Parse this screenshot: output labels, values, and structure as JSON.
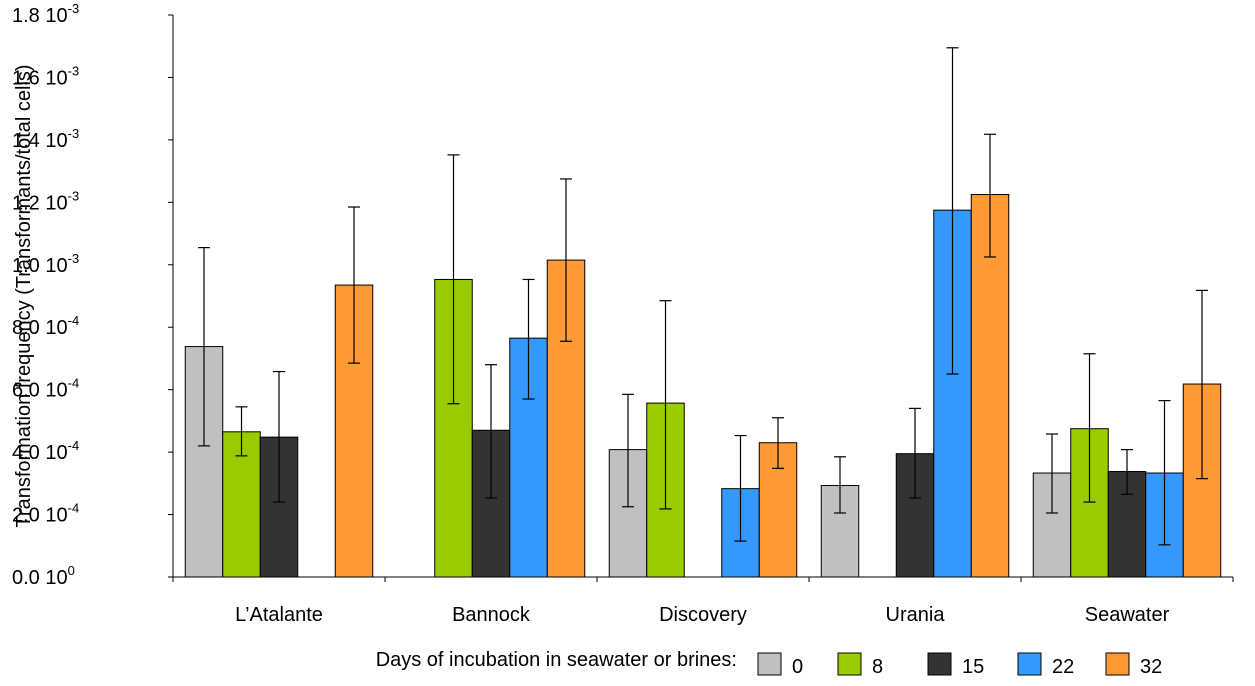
{
  "chart_data": {
    "type": "bar",
    "ylabel": "Transformation frequency (Transformants/total cells)",
    "ylim": [
      0,
      0.0018
    ],
    "yticks": [
      {
        "value": 0,
        "mantissa": "0.0",
        "exponent": "0"
      },
      {
        "value": 0.0002,
        "mantissa": "2.0",
        "exponent": "-4"
      },
      {
        "value": 0.0004,
        "mantissa": "4.0",
        "exponent": "-4"
      },
      {
        "value": 0.0006,
        "mantissa": "6.0",
        "exponent": "-4"
      },
      {
        "value": 0.0008,
        "mantissa": "8.0",
        "exponent": "-4"
      },
      {
        "value": 0.001,
        "mantissa": "1.0",
        "exponent": "-3"
      },
      {
        "value": 0.0012,
        "mantissa": "1.2",
        "exponent": "-3"
      },
      {
        "value": 0.0014,
        "mantissa": "1.4",
        "exponent": "-3"
      },
      {
        "value": 0.0016,
        "mantissa": "1.6",
        "exponent": "-3"
      },
      {
        "value": 0.0018,
        "mantissa": "1.8",
        "exponent": "-3"
      }
    ],
    "categories": [
      "L’Atalante",
      "Bannock",
      "Discovery",
      "Urania",
      "Seawater"
    ],
    "legend_title": "Days of incubation in seawater or brines:",
    "legend_position": "bottom",
    "grid": false,
    "series": [
      {
        "name": "0",
        "color": "#c0c0c0",
        "values": [
          0.000738,
          null,
          0.000408,
          0.000293,
          0.000333
        ],
        "err_low": [
          0.00042,
          null,
          0.000225,
          0.000205,
          0.000205
        ],
        "err_high": [
          0.001055,
          null,
          0.000585,
          0.000385,
          0.000458
        ]
      },
      {
        "name": "8",
        "color": "#99cc00",
        "values": [
          0.000465,
          0.000953,
          0.000557,
          null,
          0.000475
        ],
        "err_low": [
          0.000388,
          0.000555,
          0.000218,
          null,
          0.00024
        ],
        "err_high": [
          0.000545,
          0.001352,
          0.000885,
          null,
          0.000715
        ]
      },
      {
        "name": "15",
        "color": "#333333",
        "values": [
          0.000448,
          0.00047,
          null,
          0.000395,
          0.000338
        ],
        "err_low": [
          0.00024,
          0.000253,
          null,
          0.000253,
          0.000265
        ],
        "err_high": [
          0.000658,
          0.00068,
          null,
          0.00054,
          0.000408
        ]
      },
      {
        "name": "22",
        "color": "#3399ff",
        "values": [
          null,
          0.000765,
          0.000283,
          0.001175,
          0.000333
        ],
        "err_low": [
          null,
          0.00057,
          0.000115,
          0.00065,
          0.000103
        ],
        "err_high": [
          null,
          0.000953,
          0.000453,
          0.001695,
          0.000565
        ]
      },
      {
        "name": "32",
        "color": "#ff9933",
        "values": [
          0.000935,
          0.001015,
          0.00043,
          0.001225,
          0.000618
        ],
        "err_low": [
          0.000685,
          0.000755,
          0.000348,
          0.001025,
          0.000315
        ],
        "err_high": [
          0.001185,
          0.001275,
          0.00051,
          0.001418,
          0.000918
        ]
      }
    ]
  }
}
